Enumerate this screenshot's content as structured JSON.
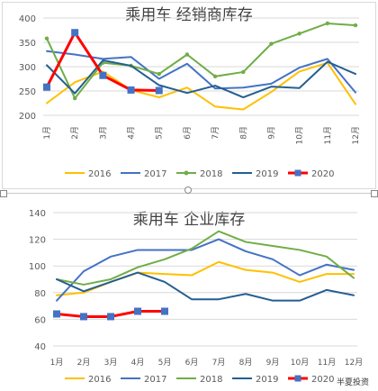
{
  "chart_data": [
    {
      "type": "line",
      "title": "乘用车 经销商库存",
      "categories": [
        "1月",
        "2月",
        "3月",
        "4月",
        "5月",
        "6月",
        "7月",
        "8月",
        "9月",
        "10月",
        "11月",
        "12月"
      ],
      "ylim": [
        200,
        400
      ],
      "yticks": [
        200,
        250,
        300,
        350,
        400
      ],
      "grid": true,
      "legend_position": "bottom",
      "series": [
        {
          "name": "2016",
          "color": "#ffc000",
          "marker": "none",
          "values": [
            225,
            268,
            290,
            252,
            237,
            257,
            218,
            212,
            248,
            290,
            308,
            223
          ]
        },
        {
          "name": "2017",
          "color": "#4472c4",
          "marker": "none",
          "values": [
            332,
            325,
            316,
            320,
            275,
            306,
            255,
            257,
            265,
            298,
            316,
            247
          ]
        },
        {
          "name": "2018",
          "color": "#70ad47",
          "marker": "circle",
          "values": [
            358,
            235,
            308,
            302,
            285,
            325,
            280,
            289,
            347,
            368,
            389,
            385
          ]
        },
        {
          "name": "2019",
          "color": "#255e91",
          "marker": "none",
          "values": [
            303,
            245,
            313,
            302,
            262,
            246,
            261,
            237,
            259,
            256,
            310,
            285
          ]
        },
        {
          "name": "2020",
          "color": "#ff0000",
          "marker": "square",
          "values": [
            258,
            370,
            282,
            252,
            251,
            null,
            null,
            null,
            null,
            null,
            null,
            null
          ]
        }
      ]
    },
    {
      "type": "line",
      "title": "乘用车 企业库存",
      "categories": [
        "1月",
        "2月",
        "3月",
        "4月",
        "5月",
        "6月",
        "7月",
        "8月",
        "9月",
        "10月",
        "11月",
        "12月"
      ],
      "ylim": [
        40,
        140
      ],
      "yticks": [
        40,
        60,
        80,
        100,
        120,
        140
      ],
      "grid": true,
      "legend_position": "bottom",
      "series": [
        {
          "name": "2016",
          "color": "#ffc000",
          "marker": "none",
          "values": [
            78,
            80,
            88,
            95,
            94,
            93,
            103,
            97,
            95,
            88,
            94,
            94
          ]
        },
        {
          "name": "2017",
          "color": "#4472c4",
          "marker": "none",
          "values": [
            74,
            96,
            107,
            112,
            112,
            112,
            120,
            111,
            105,
            93,
            101,
            97
          ]
        },
        {
          "name": "2018",
          "color": "#70ad47",
          "marker": "none",
          "values": [
            90,
            86,
            90,
            99,
            105,
            113,
            126,
            118,
            115,
            112,
            107,
            91
          ]
        },
        {
          "name": "2019",
          "color": "#255e91",
          "marker": "none",
          "values": [
            90,
            81,
            88,
            95,
            88,
            75,
            75,
            79,
            74,
            74,
            82,
            78
          ]
        },
        {
          "name": "2020",
          "color": "#ff0000",
          "marker": "square",
          "values": [
            64,
            62,
            62,
            66,
            66,
            null,
            null,
            null,
            null,
            null,
            null,
            null
          ]
        }
      ]
    }
  ],
  "watermark": {
    "text": "半夏投资"
  }
}
